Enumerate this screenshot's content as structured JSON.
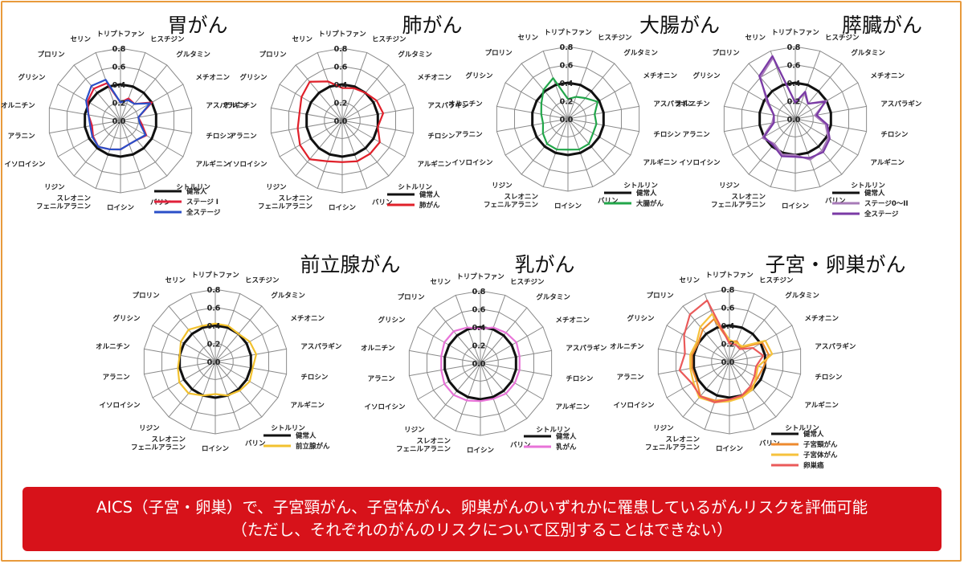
{
  "banner": {
    "line1": "AICS（子宮・卵巣）で、子宮頸がん、子宮体がん、卵巣がんのいずれかに罹患しているがんリスクを評価可能",
    "line2": "（ただし、それぞれのがんのリスクについて区別することはできない）"
  },
  "colors": {
    "frame": "#e89a3c",
    "banner_bg": "#d7121a",
    "banner_text": "#ffffff"
  },
  "chart_data": [
    {
      "type": "radar",
      "title": "胃がん",
      "axes": [
        "トリプトファン",
        "ヒスチジン",
        "グルタミン",
        "メチオニン",
        "アスパラギン",
        "チロシン",
        "アルギニン",
        "シトルリン",
        "バリン",
        "ロイシン",
        "スレオニン\nフェニルアラニン",
        "リジン",
        "イソロイシン",
        "アラニン",
        "オルニチン",
        "グリシン",
        "プロリン",
        "セリン"
      ],
      "ticks": [
        "0.0",
        "0.2",
        "0.4",
        "0.6",
        "0.8"
      ],
      "rmax": 0.8,
      "series": [
        {
          "name": "健常人",
          "color": "#111111",
          "values": [
            0.4,
            0.4,
            0.4,
            0.4,
            0.4,
            0.4,
            0.4,
            0.4,
            0.4,
            0.4,
            0.4,
            0.4,
            0.4,
            0.4,
            0.4,
            0.4,
            0.4,
            0.4
          ]
        },
        {
          "name": "ステージ I",
          "color": "#e0203a",
          "values": [
            0.2,
            0.26,
            0.24,
            0.4,
            0.2,
            0.24,
            0.33,
            0.28,
            0.28,
            0.32,
            0.34,
            0.38,
            0.35,
            0.32,
            0.36,
            0.42,
            0.46,
            0.44
          ]
        },
        {
          "name": "全ステージ",
          "color": "#2a4fc8",
          "values": [
            0.2,
            0.24,
            0.24,
            0.38,
            0.2,
            0.22,
            0.32,
            0.28,
            0.28,
            0.32,
            0.34,
            0.38,
            0.36,
            0.34,
            0.36,
            0.44,
            0.5,
            0.48
          ]
        }
      ]
    },
    {
      "type": "radar",
      "title": "肺がん",
      "axes": [
        "トリプトファン",
        "ヒスチジン",
        "グルタミン",
        "メチオニン",
        "アスパラギン",
        "チロシン",
        "アルギニン",
        "シトルリン",
        "バリン",
        "ロイシン",
        "スレオニン\nフェニルアラニン",
        "リジン",
        "イソロイシン",
        "アラニン",
        "オルニチン",
        "グリシン",
        "プロリン",
        "セリン"
      ],
      "ticks": [
        "0.0",
        "0.2",
        "0.4",
        "0.6",
        "0.8"
      ],
      "rmax": 0.8,
      "series": [
        {
          "name": "健常人",
          "color": "#111111",
          "values": [
            0.4,
            0.4,
            0.4,
            0.4,
            0.4,
            0.4,
            0.4,
            0.4,
            0.4,
            0.4,
            0.4,
            0.4,
            0.4,
            0.4,
            0.4,
            0.4,
            0.4,
            0.4
          ]
        },
        {
          "name": "肺がん",
          "color": "#e0202a",
          "values": [
            0.36,
            0.38,
            0.4,
            0.44,
            0.46,
            0.4,
            0.48,
            0.48,
            0.48,
            0.46,
            0.48,
            0.56,
            0.54,
            0.5,
            0.48,
            0.52,
            0.56,
            0.46
          ]
        }
      ]
    },
    {
      "type": "radar",
      "title": "大腸がん",
      "axes": [
        "トリプトファン",
        "ヒスチジン",
        "グルタミン",
        "メチオニン",
        "アスパラギン",
        "チロシン",
        "アルギニン",
        "シトルリン",
        "バリン",
        "ロイシン",
        "スレオニン\nフェニルアラニン",
        "リジン",
        "イソロイシン",
        "アラニン",
        "オルニチン",
        "グリシン",
        "プロリン",
        "セリン"
      ],
      "ticks": [
        "0.0",
        "0.2",
        "0.4",
        "0.6",
        "0.8"
      ],
      "rmax": 0.8,
      "series": [
        {
          "name": "健常人",
          "color": "#111111",
          "values": [
            0.4,
            0.4,
            0.4,
            0.4,
            0.4,
            0.4,
            0.4,
            0.4,
            0.4,
            0.4,
            0.4,
            0.4,
            0.4,
            0.4,
            0.4,
            0.4,
            0.4,
            0.4
          ]
        },
        {
          "name": "大腸がん",
          "color": "#22a64a",
          "values": [
            0.22,
            0.26,
            0.3,
            0.38,
            0.3,
            0.32,
            0.32,
            0.36,
            0.36,
            0.34,
            0.36,
            0.36,
            0.32,
            0.28,
            0.3,
            0.34,
            0.42,
            0.48
          ]
        }
      ]
    },
    {
      "type": "radar",
      "title": "膵臓がん",
      "axes": [
        "トリプトファン",
        "ヒスチジン",
        "グルタミン",
        "メチオニン",
        "アスパラギン",
        "チロシン",
        "アルギニン",
        "シトルリン",
        "バリン",
        "ロイシン",
        "スレオニン\nフェニルアラニン",
        "リジン",
        "イソロイシン",
        "アラニン",
        "オルニチン",
        "グリシン",
        "プロリン",
        "セリン"
      ],
      "ticks": [
        "0.0",
        "0.2",
        "0.4",
        "0.6",
        "0.8"
      ],
      "rmax": 0.8,
      "series": [
        {
          "name": "健常人",
          "color": "#111111",
          "values": [
            0.4,
            0.4,
            0.4,
            0.4,
            0.4,
            0.4,
            0.4,
            0.4,
            0.4,
            0.4,
            0.4,
            0.4,
            0.4,
            0.4,
            0.4,
            0.4,
            0.4,
            0.4
          ]
        },
        {
          "name": "ステージ0～II",
          "color": "#a77bb8",
          "values": [
            0.18,
            0.3,
            0.22,
            0.4,
            0.22,
            0.34,
            0.42,
            0.46,
            0.48,
            0.4,
            0.42,
            0.36,
            0.42,
            0.26,
            0.24,
            0.36,
            0.6,
            0.72
          ]
        },
        {
          "name": "全ステージ",
          "color": "#7a3aa6",
          "values": [
            0.18,
            0.32,
            0.22,
            0.38,
            0.24,
            0.36,
            0.44,
            0.48,
            0.46,
            0.42,
            0.44,
            0.38,
            0.4,
            0.24,
            0.24,
            0.34,
            0.62,
            0.74
          ]
        }
      ]
    },
    {
      "type": "radar",
      "title": "前立腺がん",
      "axes": [
        "トリプトファン",
        "ヒスチジン",
        "グルタミン",
        "メチオニン",
        "アスパラギン",
        "チロシン",
        "アルギニン",
        "シトルリン",
        "バリン",
        "ロイシン",
        "スレオニン\nフェニルアラニン",
        "リジン",
        "イソロイシン",
        "アラニン",
        "オルニチン",
        "グリシン",
        "プロリン",
        "セリン"
      ],
      "ticks": [
        "0.0",
        "0.2",
        "0.4",
        "0.6",
        "0.8"
      ],
      "rmax": 0.8,
      "series": [
        {
          "name": "健常人",
          "color": "#111111",
          "values": [
            0.4,
            0.4,
            0.4,
            0.4,
            0.4,
            0.4,
            0.4,
            0.4,
            0.4,
            0.4,
            0.4,
            0.4,
            0.4,
            0.4,
            0.4,
            0.4,
            0.4,
            0.4
          ]
        },
        {
          "name": "前立腺がん",
          "color": "#f2c12e",
          "values": [
            0.42,
            0.42,
            0.4,
            0.44,
            0.46,
            0.42,
            0.44,
            0.42,
            0.4,
            0.36,
            0.4,
            0.46,
            0.46,
            0.42,
            0.4,
            0.44,
            0.46,
            0.42
          ]
        }
      ]
    },
    {
      "type": "radar",
      "title": "乳がん",
      "axes": [
        "トリプトファン",
        "ヒスチジン",
        "グルタミン",
        "メチオニン",
        "アスパラギン",
        "チロシン",
        "アルギニン",
        "シトルリン",
        "バリン",
        "ロイシン",
        "スレオニン\nフェニルアラニン",
        "リジン",
        "イソロイシン",
        "アラニン",
        "オルニチン",
        "グリシン",
        "プロリン",
        "セリン"
      ],
      "ticks": [
        "0.0",
        "0.2",
        "0.4",
        "0.6",
        "0.8"
      ],
      "rmax": 0.8,
      "series": [
        {
          "name": "健常人",
          "color": "#111111",
          "values": [
            0.4,
            0.4,
            0.4,
            0.4,
            0.4,
            0.4,
            0.4,
            0.4,
            0.4,
            0.4,
            0.4,
            0.4,
            0.4,
            0.4,
            0.4,
            0.4,
            0.4,
            0.4
          ]
        },
        {
          "name": "乳がん",
          "color": "#e873d8",
          "values": [
            0.38,
            0.42,
            0.44,
            0.46,
            0.44,
            0.44,
            0.44,
            0.44,
            0.42,
            0.42,
            0.44,
            0.46,
            0.46,
            0.44,
            0.44,
            0.46,
            0.46,
            0.42
          ]
        }
      ]
    },
    {
      "type": "radar",
      "title": "子宮・卵巣がん",
      "axes": [
        "トリプトファン",
        "ヒスチジン",
        "グルタミン",
        "メチオニン",
        "アスパラギン",
        "チロシン",
        "アルギニン",
        "シトルリン",
        "バリン",
        "ロイシン",
        "スレオニン\nフェニルアラニン",
        "リジン",
        "イソロイシン",
        "アラニン",
        "オルニチン",
        "グリシン",
        "プロリン",
        "セリン"
      ],
      "ticks": [
        "0.0",
        "0.2",
        "0.4",
        "0.6",
        "0.8"
      ],
      "rmax": 0.8,
      "series": [
        {
          "name": "健常人",
          "color": "#111111",
          "values": [
            0.4,
            0.4,
            0.4,
            0.4,
            0.4,
            0.4,
            0.4,
            0.4,
            0.4,
            0.4,
            0.4,
            0.4,
            0.4,
            0.4,
            0.4,
            0.4,
            0.4,
            0.4
          ]
        },
        {
          "name": "子宮頸がん",
          "color": "#ee8a2e",
          "values": [
            0.22,
            0.24,
            0.2,
            0.42,
            0.44,
            0.38,
            0.36,
            0.38,
            0.42,
            0.42,
            0.46,
            0.5,
            0.42,
            0.42,
            0.42,
            0.4,
            0.46,
            0.5
          ]
        },
        {
          "name": "子宮体がん",
          "color": "#f6c23c",
          "values": [
            0.24,
            0.22,
            0.22,
            0.46,
            0.48,
            0.32,
            0.34,
            0.4,
            0.42,
            0.44,
            0.48,
            0.52,
            0.46,
            0.44,
            0.44,
            0.42,
            0.5,
            0.56
          ]
        },
        {
          "name": "卵巣癌",
          "color": "#ea5a5a",
          "values": [
            0.2,
            0.2,
            0.18,
            0.3,
            0.38,
            0.3,
            0.32,
            0.36,
            0.4,
            0.42,
            0.48,
            0.5,
            0.48,
            0.56,
            0.5,
            0.58,
            0.68,
            0.72
          ]
        }
      ]
    }
  ]
}
